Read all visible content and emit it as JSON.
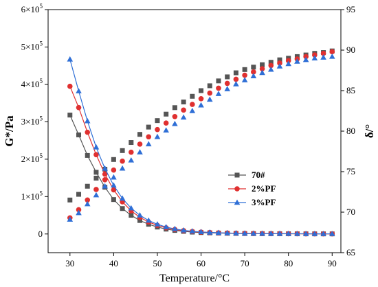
{
  "chart_data": {
    "type": "scatter",
    "xlabel": "Temperature/°C",
    "ylabel_left": "G*/Pa",
    "ylabel_right": "δ/°",
    "xlim": [
      25,
      92
    ],
    "ylim_left": [
      -50000,
      600000
    ],
    "ylim_right": [
      65,
      95
    ],
    "x_ticks": [
      30,
      40,
      50,
      60,
      70,
      80,
      90
    ],
    "y_left_ticks": [
      {
        "value": 0,
        "mantissa": "0",
        "exp": ""
      },
      {
        "value": 100000,
        "mantissa": "1×10",
        "exp": "5"
      },
      {
        "value": 200000,
        "mantissa": "2×10",
        "exp": "5"
      },
      {
        "value": 300000,
        "mantissa": "3×10",
        "exp": "5"
      },
      {
        "value": 400000,
        "mantissa": "4×10",
        "exp": "5"
      },
      {
        "value": 500000,
        "mantissa": "5×10",
        "exp": "5"
      },
      {
        "value": 600000,
        "mantissa": "6×10",
        "exp": "5"
      }
    ],
    "y_right_ticks": [
      65,
      70,
      75,
      80,
      85,
      90,
      95
    ],
    "legend_position": "center-right",
    "x": [
      30,
      32,
      34,
      36,
      38,
      40,
      42,
      44,
      46,
      48,
      50,
      52,
      54,
      56,
      58,
      60,
      62,
      64,
      66,
      68,
      70,
      72,
      74,
      76,
      78,
      80,
      82,
      84,
      86,
      88,
      90
    ],
    "series": [
      {
        "name": "70#",
        "color": "#555555",
        "marker": "square",
        "g_star": [
          318000,
          265000,
          210000,
          165000,
          125000,
          92000,
          68000,
          50000,
          36000,
          26000,
          18500,
          13000,
          9500,
          7000,
          5000,
          3800,
          3000,
          2400,
          1900,
          1500,
          1200,
          1000,
          800,
          700,
          600,
          500,
          420,
          360,
          300,
          260,
          220
        ],
        "delta": [
          71.5,
          72.2,
          73.2,
          74.2,
          75.3,
          76.5,
          77.6,
          78.6,
          79.6,
          80.5,
          81.3,
          82.1,
          82.9,
          83.6,
          84.3,
          85.0,
          85.6,
          86.2,
          86.7,
          87.2,
          87.6,
          87.9,
          88.2,
          88.5,
          88.8,
          89.0,
          89.2,
          89.4,
          89.6,
          89.7,
          89.9
        ]
      },
      {
        "name": "2%PF",
        "color": "#e03030",
        "marker": "circle",
        "g_star": [
          395000,
          338000,
          272000,
          212000,
          160000,
          118000,
          86000,
          62000,
          44500,
          32000,
          23000,
          16500,
          12000,
          8800,
          6500,
          4900,
          3800,
          3000,
          2400,
          1900,
          1500,
          1250,
          1050,
          880,
          750,
          640,
          550,
          470,
          410,
          360,
          320
        ],
        "delta": [
          69.3,
          70.3,
          71.5,
          72.8,
          74.0,
          75.2,
          76.3,
          77.4,
          78.4,
          79.3,
          80.2,
          81.0,
          81.8,
          82.6,
          83.3,
          84.0,
          84.7,
          85.3,
          85.9,
          86.4,
          86.9,
          87.3,
          87.7,
          88.1,
          88.4,
          88.7,
          88.9,
          89.2,
          89.4,
          89.6,
          89.8
        ]
      },
      {
        "name": "3%PF",
        "color": "#2f6fd6",
        "marker": "triangle",
        "g_star": [
          467000,
          382000,
          302000,
          232000,
          175000,
          130000,
          95000,
          69000,
          50000,
          36000,
          26000,
          18500,
          13500,
          9800,
          7200,
          5400,
          4100,
          3200,
          2500,
          2000,
          1600,
          1300,
          1100,
          900,
          770,
          660,
          570,
          490,
          430,
          380,
          340
        ],
        "delta": [
          69.1,
          69.9,
          71.0,
          72.1,
          73.2,
          74.3,
          75.4,
          76.4,
          77.4,
          78.4,
          79.3,
          80.1,
          80.9,
          81.7,
          82.5,
          83.2,
          83.9,
          84.6,
          85.2,
          85.8,
          86.3,
          86.8,
          87.2,
          87.6,
          88.0,
          88.3,
          88.6,
          88.8,
          89.0,
          89.1,
          89.2
        ]
      }
    ]
  }
}
